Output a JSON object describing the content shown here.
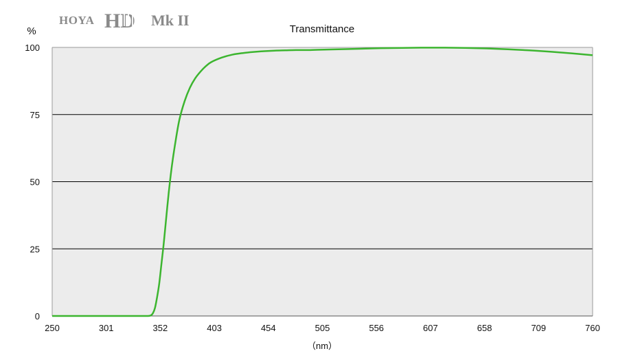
{
  "brand": {
    "hoya": "HOYA",
    "hd": "HD",
    "mark": "Mk II"
  },
  "chart_data": {
    "type": "line",
    "title": "Transmittance",
    "ylabel": "%",
    "xlabel": "（nm）",
    "xlim": [
      250,
      760
    ],
    "ylim": [
      0,
      100
    ],
    "x_ticks": [
      250,
      301,
      352,
      403,
      454,
      505,
      556,
      607,
      658,
      709,
      760
    ],
    "y_ticks": [
      0,
      25,
      50,
      75,
      100
    ],
    "grid": "horizontal",
    "colors": {
      "line": "#3cb52f",
      "plot_bg": "#ececec",
      "grid": "#000000"
    },
    "series": [
      {
        "x": [
          250,
          300,
          320,
          330,
          335,
          340,
          343,
          345,
          347,
          349,
          351,
          353,
          355,
          357,
          360,
          363,
          366,
          370,
          375,
          380,
          385,
          390,
          395,
          400,
          410,
          420,
          430,
          440,
          450,
          460,
          470,
          480,
          490,
          500,
          520,
          540,
          560,
          580,
          600,
          620,
          640,
          660,
          680,
          700,
          720,
          740,
          760
        ],
        "y": [
          0,
          0,
          0,
          0,
          0,
          0,
          0.2,
          1,
          3,
          7,
          12,
          19,
          26,
          34,
          46,
          56,
          64,
          73,
          80,
          85,
          88.5,
          91,
          93,
          94.5,
          96.2,
          97.3,
          97.9,
          98.3,
          98.6,
          98.8,
          98.9,
          99.0,
          99.0,
          99.1,
          99.3,
          99.5,
          99.7,
          99.8,
          99.9,
          99.9,
          99.8,
          99.6,
          99.3,
          98.9,
          98.4,
          97.8,
          97.1
        ]
      }
    ]
  }
}
